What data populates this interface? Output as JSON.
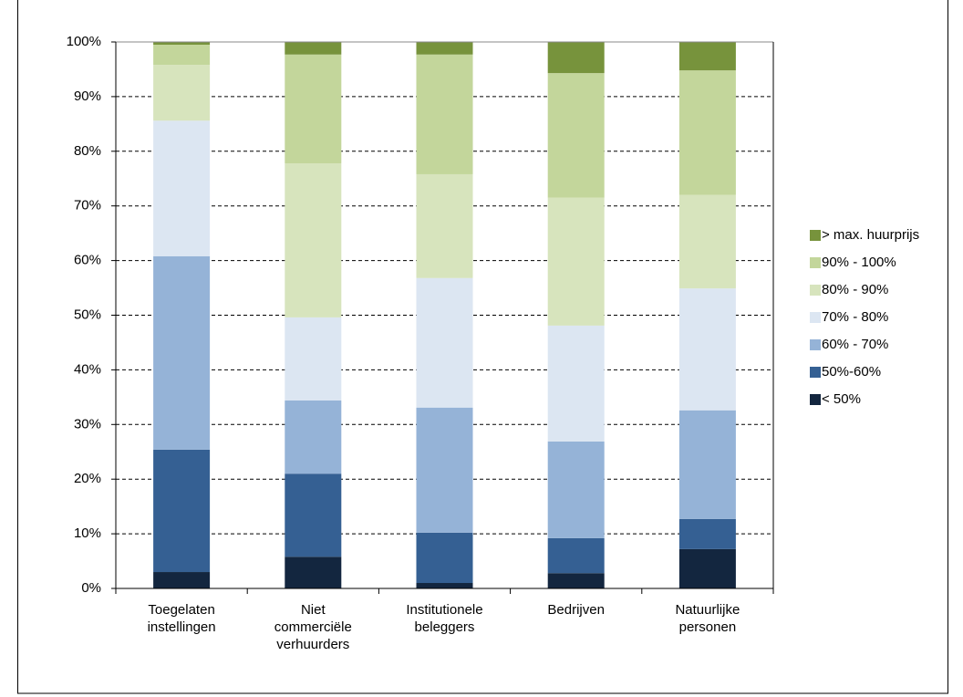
{
  "chart_data": {
    "type": "stacked_bar",
    "categories": [
      "Toegelaten\ninstellingen",
      "Niet\ncommerciële\nverhuurders",
      "Institutionele\nbeleggers",
      "Bedrijven",
      "Natuurlijke\npersonen"
    ],
    "series": [
      {
        "name": "< 50%",
        "color": "#13263f",
        "values": [
          3.0,
          5.8,
          1.0,
          2.8,
          7.2
        ]
      },
      {
        "name": "50%-60%",
        "color": "#356093",
        "values": [
          22.4,
          15.2,
          9.2,
          6.4,
          5.5
        ]
      },
      {
        "name": "60% - 70%",
        "color": "#95b3d7",
        "values": [
          35.4,
          13.4,
          22.9,
          17.7,
          19.9
        ]
      },
      {
        "name": "70% - 80%",
        "color": "#dce6f2",
        "values": [
          24.8,
          15.2,
          23.7,
          21.2,
          22.3
        ]
      },
      {
        "name": "80% - 90%",
        "color": "#d7e4bd",
        "values": [
          10.2,
          28.2,
          19.0,
          23.4,
          17.1
        ]
      },
      {
        "name": "90% - 100%",
        "color": "#c3d69b",
        "values": [
          3.7,
          19.9,
          21.9,
          22.8,
          22.8
        ]
      },
      {
        "name": "> max. huurprijs",
        "color": "#77933c",
        "values": [
          0.5,
          2.3,
          2.3,
          5.7,
          5.2
        ]
      }
    ],
    "ylim": [
      0,
      100
    ],
    "yticks": [
      {
        "value": 0,
        "label": "0%"
      },
      {
        "value": 10,
        "label": "10%"
      },
      {
        "value": 20,
        "label": "20%"
      },
      {
        "value": 30,
        "label": "30%"
      },
      {
        "value": 40,
        "label": "40%"
      },
      {
        "value": 50,
        "label": "50%"
      },
      {
        "value": 60,
        "label": "60%"
      },
      {
        "value": 70,
        "label": "70%"
      },
      {
        "value": 80,
        "label": "80%"
      },
      {
        "value": 90,
        "label": "90%"
      },
      {
        "value": 100,
        "label": "100%"
      }
    ],
    "grid": true,
    "legend": "right"
  }
}
